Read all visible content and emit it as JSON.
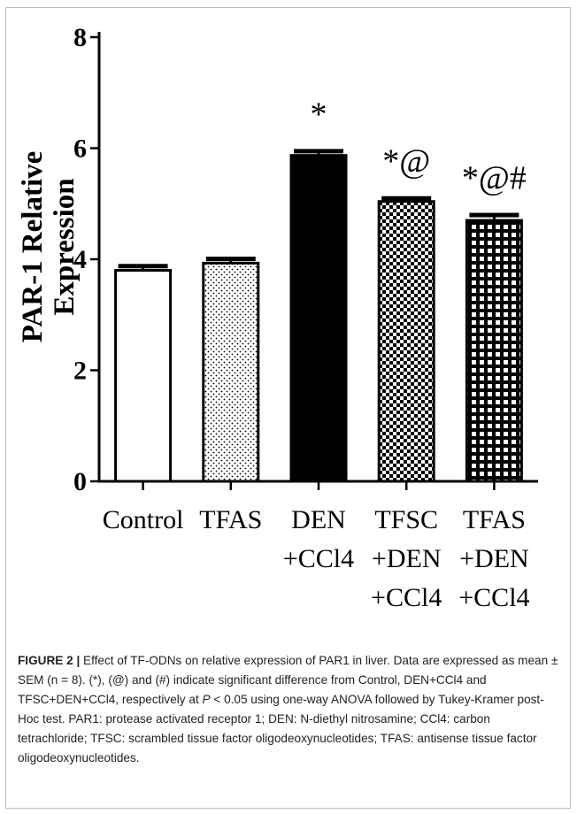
{
  "chart_data": {
    "type": "bar",
    "categories": [
      "Control",
      "TFAS",
      "DEN +CCl4",
      "TFSC +DEN +CCl4",
      "TFAS +DEN +CCl4"
    ],
    "category_lines": [
      [
        "Control"
      ],
      [
        "TFAS"
      ],
      [
        "DEN",
        "+CCl4"
      ],
      [
        "TFSC",
        "+DEN",
        "+CCl4"
      ],
      [
        "TFAS",
        "+DEN",
        "+CCl4"
      ]
    ],
    "values": [
      3.8,
      3.93,
      5.87,
      5.04,
      4.7
    ],
    "errors": [
      0.1,
      0.1,
      0.1,
      0.08,
      0.12
    ],
    "annotations": [
      "",
      "",
      "*",
      "*@",
      "*@#"
    ],
    "patterns": [
      "white",
      "dots",
      "black",
      "checker",
      "grid"
    ],
    "ylabel_lines": [
      "PAR-1 Relative",
      "Expression"
    ],
    "xlabel": "",
    "ylim": [
      0,
      8
    ],
    "yticks": [
      0,
      2,
      4,
      6,
      8
    ],
    "grid": false
  },
  "caption": {
    "label": "FIGURE 2 |",
    "text1": " Effect of TF-ODNs on relative expression of PAR1 in liver. Data are expressed as mean ± SEM (n = 8). (*), (@) and (#) indicate significant difference from Control, DEN+CCl4 and TFSC+DEN+CCl4, respectively at ",
    "p": "P",
    "text2": " < 0.05 using one-way ANOVA followed by Tukey-Kramer post-Hoc test. PAR1: protease activated receptor 1; DEN: N-diethyl nitrosamine; CCl4: carbon tetrachloride; TFSC: scrambled tissue factor oligodeoxynucleotides; TFAS: antisense tissue factor oligodeoxynucleotides."
  }
}
